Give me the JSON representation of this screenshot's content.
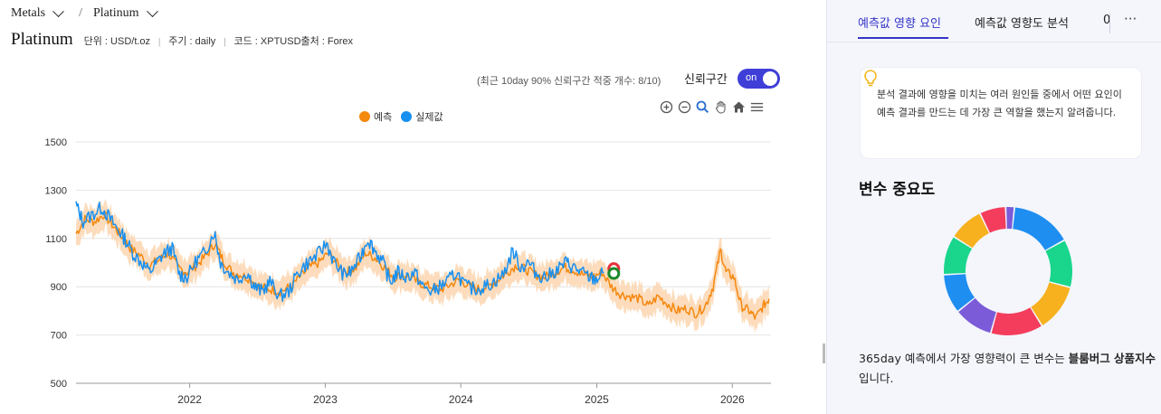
{
  "breadcrumb": {
    "first": "Metals",
    "second": "Platinum",
    "separator": "/"
  },
  "header": {
    "title": "Platinum",
    "unit": "단위 : USD/t.oz",
    "period": "주기 : daily",
    "code": "코드 : XPTUSD출처 : Forex"
  },
  "confidence": {
    "note": "(최근 10day 90% 신뢰구간 적중 개수: 8/10)",
    "label": "신뢰구간",
    "toggle_text": "on",
    "toggle_on": true
  },
  "toolbar_icons": [
    "zoom-in-icon",
    "zoom-out-icon",
    "zoom-select-icon",
    "pan-hand-icon",
    "home-icon",
    "menu-icon"
  ],
  "chart_data": {
    "type": "line",
    "legend": [
      {
        "name": "예측",
        "color": "#f5880f"
      },
      {
        "name": "실제값",
        "color": "#1890f0"
      }
    ],
    "band_color": "#fbd6b0",
    "x_ticks": [
      "2022",
      "2023",
      "2024",
      "2025",
      "2026"
    ],
    "y_ticks": [
      1500,
      1300,
      1100,
      900,
      700,
      500
    ],
    "ylim": [
      500,
      1500
    ],
    "xlim": [
      "2021-03-01",
      "2026-04-15"
    ],
    "grid": true,
    "legend_position": "top-center",
    "series": [
      {
        "name": "실제값",
        "color": "#1890f0",
        "points": [
          [
            "2021-03-01",
            1240
          ],
          [
            "2021-03-20",
            1170
          ],
          [
            "2021-04-15",
            1200
          ],
          [
            "2021-05-10",
            1230
          ],
          [
            "2021-06-01",
            1180
          ],
          [
            "2021-06-20",
            1140
          ],
          [
            "2021-07-10",
            1100
          ],
          [
            "2021-08-01",
            1040
          ],
          [
            "2021-08-25",
            1000
          ],
          [
            "2021-09-15",
            960
          ],
          [
            "2021-10-05",
            1000
          ],
          [
            "2021-10-25",
            1040
          ],
          [
            "2021-11-15",
            1060
          ],
          [
            "2021-12-05",
            950
          ],
          [
            "2021-12-25",
            940
          ],
          [
            "2022-01-20",
            1010
          ],
          [
            "2022-02-10",
            1040
          ],
          [
            "2022-03-08",
            1130
          ],
          [
            "2022-03-25",
            1000
          ],
          [
            "2022-04-15",
            960
          ],
          [
            "2022-05-10",
            930
          ],
          [
            "2022-06-05",
            960
          ],
          [
            "2022-06-25",
            900
          ],
          [
            "2022-07-15",
            880
          ],
          [
            "2022-08-05",
            920
          ],
          [
            "2022-09-01",
            860
          ],
          [
            "2022-09-25",
            880
          ],
          [
            "2022-10-20",
            960
          ],
          [
            "2022-11-15",
            1000
          ],
          [
            "2022-12-10",
            1030
          ],
          [
            "2023-01-05",
            1080
          ],
          [
            "2023-01-25",
            1000
          ],
          [
            "2023-02-20",
            950
          ],
          [
            "2023-03-10",
            960
          ],
          [
            "2023-04-05",
            1020
          ],
          [
            "2023-04-25",
            1100
          ],
          [
            "2023-05-15",
            1050
          ],
          [
            "2023-06-05",
            1000
          ],
          [
            "2023-06-25",
            920
          ],
          [
            "2023-07-15",
            960
          ],
          [
            "2023-08-05",
            940
          ],
          [
            "2023-08-30",
            960
          ],
          [
            "2023-09-20",
            900
          ],
          [
            "2023-10-15",
            880
          ],
          [
            "2023-11-05",
            900
          ],
          [
            "2023-11-25",
            920
          ],
          [
            "2023-12-20",
            960
          ],
          [
            "2024-01-15",
            900
          ],
          [
            "2024-02-10",
            890
          ],
          [
            "2024-03-05",
            900
          ],
          [
            "2024-03-30",
            920
          ],
          [
            "2024-04-25",
            950
          ],
          [
            "2024-05-20",
            1050
          ],
          [
            "2024-06-10",
            980
          ],
          [
            "2024-07-01",
            1000
          ],
          [
            "2024-07-25",
            950
          ],
          [
            "2024-08-20",
            940
          ],
          [
            "2024-09-15",
            970
          ],
          [
            "2024-10-10",
            1000
          ],
          [
            "2024-10-30",
            980
          ],
          [
            "2024-11-20",
            960
          ],
          [
            "2024-12-10",
            940
          ],
          [
            "2024-12-30",
            930
          ],
          [
            "2025-01-20",
            960
          ]
        ]
      },
      {
        "name": "예측",
        "color": "#f5880f",
        "points": [
          [
            "2021-03-01",
            1120
          ],
          [
            "2021-03-25",
            1180
          ],
          [
            "2021-04-20",
            1170
          ],
          [
            "2021-05-15",
            1200
          ],
          [
            "2021-06-10",
            1150
          ],
          [
            "2021-07-01",
            1110
          ],
          [
            "2021-07-25",
            1060
          ],
          [
            "2021-08-20",
            1030
          ],
          [
            "2021-09-15",
            990
          ],
          [
            "2021-10-10",
            1010
          ],
          [
            "2021-11-05",
            1040
          ],
          [
            "2021-11-30",
            980
          ],
          [
            "2021-12-25",
            960
          ],
          [
            "2022-01-20",
            990
          ],
          [
            "2022-02-15",
            1030
          ],
          [
            "2022-03-10",
            1080
          ],
          [
            "2022-04-01",
            1010
          ],
          [
            "2022-04-25",
            960
          ],
          [
            "2022-05-20",
            950
          ],
          [
            "2022-06-15",
            930
          ],
          [
            "2022-07-10",
            900
          ],
          [
            "2022-08-05",
            890
          ],
          [
            "2022-09-01",
            880
          ],
          [
            "2022-09-30",
            900
          ],
          [
            "2022-10-25",
            940
          ],
          [
            "2022-11-20",
            980
          ],
          [
            "2022-12-15",
            1000
          ],
          [
            "2023-01-10",
            1040
          ],
          [
            "2023-02-05",
            990
          ],
          [
            "2023-03-01",
            960
          ],
          [
            "2023-03-25",
            980
          ],
          [
            "2023-04-20",
            1040
          ],
          [
            "2023-05-15",
            1020
          ],
          [
            "2023-06-10",
            980
          ],
          [
            "2023-07-05",
            940
          ],
          [
            "2023-07-30",
            950
          ],
          [
            "2023-08-25",
            930
          ],
          [
            "2023-09-20",
            910
          ],
          [
            "2023-10-15",
            900
          ],
          [
            "2023-11-10",
            890
          ],
          [
            "2023-12-05",
            910
          ],
          [
            "2023-12-30",
            930
          ],
          [
            "2024-01-25",
            900
          ],
          [
            "2024-02-20",
            890
          ],
          [
            "2024-03-15",
            900
          ],
          [
            "2024-04-10",
            930
          ],
          [
            "2024-05-05",
            960
          ],
          [
            "2024-05-30",
            990
          ],
          [
            "2024-06-25",
            970
          ],
          [
            "2024-07-20",
            950
          ],
          [
            "2024-08-15",
            940
          ],
          [
            "2024-09-10",
            960
          ],
          [
            "2024-10-05",
            980
          ],
          [
            "2024-10-30",
            970
          ],
          [
            "2024-11-25",
            950
          ],
          [
            "2024-12-20",
            940
          ],
          [
            "2025-01-15",
            960
          ],
          [
            "2025-02-10",
            900
          ],
          [
            "2025-03-05",
            870
          ],
          [
            "2025-03-30",
            860
          ],
          [
            "2025-04-25",
            850
          ],
          [
            "2025-05-20",
            820
          ],
          [
            "2025-06-15",
            860
          ],
          [
            "2025-07-10",
            830
          ],
          [
            "2025-08-05",
            800
          ],
          [
            "2025-08-30",
            810
          ],
          [
            "2025-09-25",
            790
          ],
          [
            "2025-10-20",
            820
          ],
          [
            "2025-11-10",
            900
          ],
          [
            "2025-11-30",
            1050
          ],
          [
            "2025-12-15",
            960
          ],
          [
            "2026-01-05",
            940
          ],
          [
            "2026-01-25",
            820
          ],
          [
            "2026-02-15",
            800
          ],
          [
            "2026-03-05",
            770
          ],
          [
            "2026-03-25",
            820
          ],
          [
            "2026-04-10",
            850
          ]
        ]
      }
    ],
    "markers": [
      {
        "date": "2025-01-20",
        "value": 975,
        "color": "#e8303a"
      },
      {
        "date": "2025-01-20",
        "value": 955,
        "color": "#1a8a2a"
      }
    ]
  },
  "right": {
    "tabs": [
      {
        "label": "예측값 영향 요인",
        "active": true
      },
      {
        "label": "예측값 영향도 분석",
        "active": false
      },
      {
        "label": "0",
        "active": false
      }
    ],
    "more_label": "···",
    "info_text": "분석 결과에 영향을 미치는 여러 원인들 중에서 어떤 요인이 예측 결과를 만드는 데 가장 큰 역할을 했는지 알려줍니다.",
    "importance_title": "변수 중요도",
    "donut": {
      "slices": [
        {
          "value": 14,
          "color": "#1f8ef1"
        },
        {
          "value": 11,
          "color": "#19d68c"
        },
        {
          "value": 11,
          "color": "#f7b11f"
        },
        {
          "value": 12,
          "color": "#f43d5c"
        },
        {
          "value": 9,
          "color": "#7b5bd8"
        },
        {
          "value": 9,
          "color": "#1f8ef1"
        },
        {
          "value": 9,
          "color": "#19d68c"
        },
        {
          "value": 8,
          "color": "#f7b11f"
        },
        {
          "value": 6,
          "color": "#f43d5c"
        },
        {
          "value": 2,
          "color": "#7b5bd8"
        }
      ]
    },
    "summary_prefix": "365day 예측에서 가장 영향력이 큰 변수는 ",
    "summary_bold": "블룸버그 상품지수",
    "summary_suffix": "입니다."
  }
}
